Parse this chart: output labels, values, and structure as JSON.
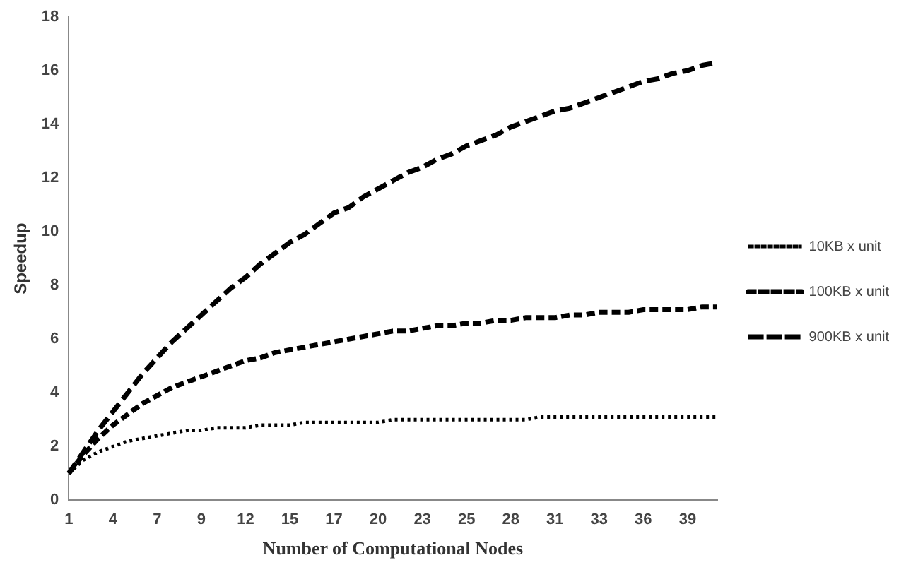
{
  "chart_data": {
    "type": "line",
    "xlabel": "Number of Computational Nodes",
    "ylabel": "Speedup",
    "categories": [
      "1",
      null,
      null,
      "4",
      null,
      null,
      "7",
      null,
      null,
      "9",
      null,
      null,
      "12",
      null,
      null,
      "15",
      null,
      null,
      "17",
      null,
      null,
      "20",
      null,
      null,
      "23",
      null,
      null,
      "25",
      null,
      null,
      "28",
      null,
      null,
      "31",
      null,
      null,
      "33",
      null,
      null,
      "36",
      null,
      null,
      "39",
      null,
      null
    ],
    "series": [
      {
        "name": "10KB x unit",
        "color": "#000000",
        "line_style": "dotted",
        "values": [
          1.0,
          1.5,
          1.8,
          2.0,
          2.2,
          2.3,
          2.4,
          2.5,
          2.6,
          2.6,
          2.7,
          2.7,
          2.7,
          2.8,
          2.8,
          2.8,
          2.9,
          2.9,
          2.9,
          2.9,
          2.9,
          2.9,
          3.0,
          3.0,
          3.0,
          3.0,
          3.0,
          3.0,
          3.0,
          3.0,
          3.0,
          3.0,
          3.1,
          3.1,
          3.1,
          3.1,
          3.1,
          3.1,
          3.1,
          3.1,
          3.1,
          3.1,
          3.1,
          3.1,
          3.1
        ]
      },
      {
        "name": "100KB x unit",
        "color": "#000000",
        "line_style": "dashed",
        "values": [
          1.0,
          1.7,
          2.3,
          2.8,
          3.2,
          3.6,
          3.9,
          4.2,
          4.4,
          4.6,
          4.8,
          5.0,
          5.2,
          5.3,
          5.5,
          5.6,
          5.7,
          5.8,
          5.9,
          6.0,
          6.1,
          6.2,
          6.3,
          6.3,
          6.4,
          6.5,
          6.5,
          6.6,
          6.6,
          6.7,
          6.7,
          6.8,
          6.8,
          6.8,
          6.9,
          6.9,
          7.0,
          7.0,
          7.0,
          7.1,
          7.1,
          7.1,
          7.1,
          7.2,
          7.2
        ]
      },
      {
        "name": "900KB x unit",
        "color": "#000000",
        "line_style": "dashed",
        "values": [
          1.0,
          1.8,
          2.6,
          3.3,
          4.0,
          4.7,
          5.3,
          5.9,
          6.4,
          6.9,
          7.4,
          7.9,
          8.3,
          8.8,
          9.2,
          9.6,
          9.9,
          10.3,
          10.7,
          10.9,
          11.3,
          11.6,
          11.9,
          12.2,
          12.4,
          12.7,
          12.9,
          13.2,
          13.4,
          13.6,
          13.9,
          14.1,
          14.3,
          14.5,
          14.6,
          14.8,
          15.0,
          15.2,
          15.4,
          15.6,
          15.7,
          15.9,
          16.0,
          16.2,
          16.3
        ]
      }
    ],
    "ylim": [
      0,
      18
    ],
    "yticks": [
      0,
      2,
      4,
      6,
      8,
      10,
      12,
      14,
      16,
      18
    ],
    "grid": false,
    "legend": "right",
    "marker": "none"
  }
}
